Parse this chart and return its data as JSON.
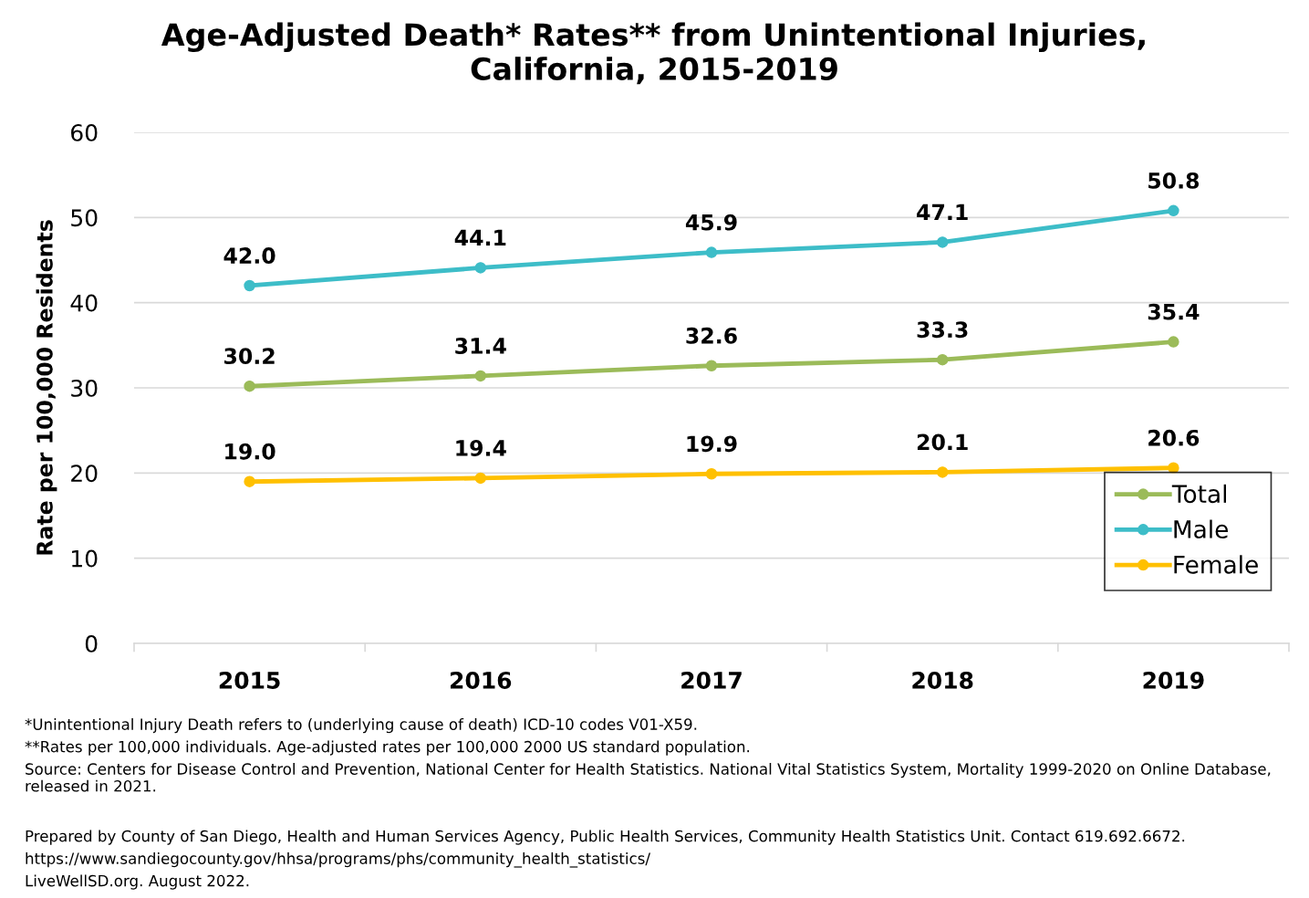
{
  "chart_data": {
    "type": "line",
    "title": "Age-Adjusted Death* Rates** from Unintentional Injuries,\nCalifornia, 2015-2019",
    "ylabel": "Rate per 100,000 Residents",
    "categories": [
      "2015",
      "2016",
      "2017",
      "2018",
      "2019"
    ],
    "series": [
      {
        "name": "Total",
        "color": "#9bbb59",
        "values": [
          30.2,
          31.4,
          32.6,
          33.3,
          35.4
        ],
        "value_labels": [
          "30.2",
          "31.4",
          "32.6",
          "33.3",
          "35.4"
        ]
      },
      {
        "name": "Male",
        "color": "#3dbdc8",
        "values": [
          42.0,
          44.1,
          45.9,
          47.1,
          50.8
        ],
        "value_labels": [
          "42.0",
          "44.1",
          "45.9",
          "47.1",
          "50.8"
        ]
      },
      {
        "name": "Female",
        "color": "#ffc000",
        "values": [
          19.0,
          19.4,
          19.9,
          20.1,
          20.6
        ],
        "value_labels": [
          "19.0",
          "19.4",
          "19.9",
          "20.1",
          "20.6"
        ]
      }
    ],
    "ylim": [
      0,
      60
    ],
    "yticks": [
      0,
      10,
      20,
      30,
      40,
      50,
      60
    ],
    "grid": "y",
    "legend": "bottom right",
    "marker": "circle",
    "line_style": "solid",
    "annotations": [
      "*Unintentional Injury Death refers to (underlying cause of death) ICD-10 codes V01-X59.",
      "**Rates per 100,000 individuals. Age-adjusted rates per 100,000 2000 US standard population.",
      "Source: Centers for Disease Control and Prevention, National Center for Health Statistics. National Vital Statistics System, Mortality 1999-2020 on Online Database, released in 2021.",
      "Prepared by County of San Diego, Health and Human Services Agency, Public Health Services, Community Health Statistics Unit. Contact 619.692.6672.",
      "https://www.sandiegocounty.gov/hhsa/programs/phs/community_health_statistics/",
      "LiveWellSD.org. August 2022."
    ]
  }
}
